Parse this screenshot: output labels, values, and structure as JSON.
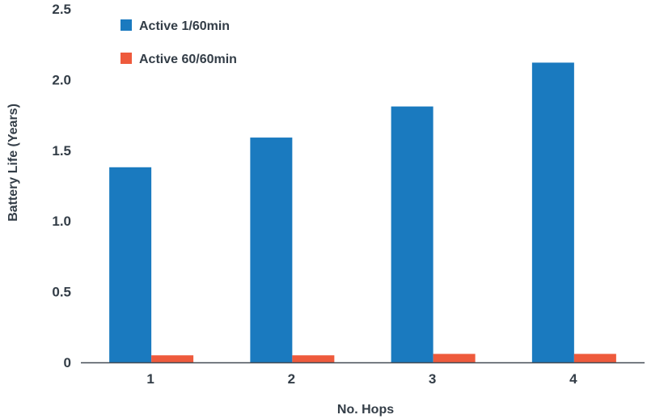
{
  "chart_data": {
    "type": "bar",
    "title": "",
    "xlabel": "No. Hops",
    "ylabel": "Battery Life (Years)",
    "categories": [
      "1",
      "2",
      "3",
      "4"
    ],
    "ylim": [
      0,
      2.5
    ],
    "yticks": [
      0,
      0.5,
      1.0,
      1.5,
      2.0,
      2.5
    ],
    "ytick_labels": [
      "0",
      "0.5",
      "1.0",
      "1.5",
      "2.0",
      "2.5"
    ],
    "grid": false,
    "legend_position": "top-left",
    "series": [
      {
        "name": "Active 1/60min",
        "color": "#1a7abf",
        "values": [
          1.38,
          1.59,
          1.81,
          2.12
        ]
      },
      {
        "name": "Active 60/60min",
        "color": "#ee5a3c",
        "values": [
          0.05,
          0.05,
          0.06,
          0.06
        ]
      }
    ]
  }
}
